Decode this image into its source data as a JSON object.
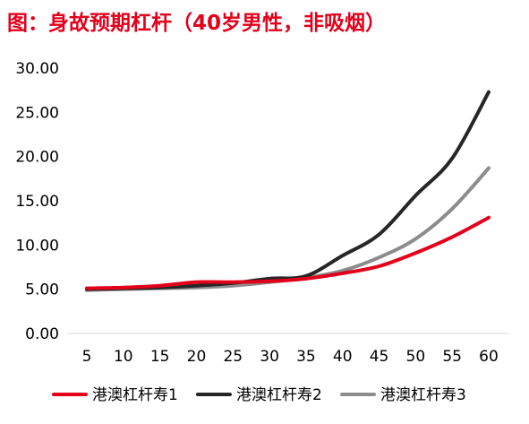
{
  "chart_data": {
    "type": "line",
    "title": "图：身故预期杠杆（40岁男性，非吸烟）",
    "xlabel": "",
    "ylabel": "",
    "x": [
      5,
      10,
      15,
      20,
      25,
      30,
      35,
      40,
      45,
      50,
      55,
      60
    ],
    "ylim": [
      0,
      30
    ],
    "y_ticks": [
      "0.00",
      "5.00",
      "10.00",
      "15.00",
      "20.00",
      "25.00",
      "30.00"
    ],
    "grid": false,
    "legend_position": "bottom",
    "series": [
      {
        "name": "港澳杠杆寿1",
        "color": "#e3001b",
        "values": [
          5.1,
          5.2,
          5.4,
          5.8,
          5.8,
          5.9,
          6.2,
          6.8,
          7.6,
          9.1,
          10.9,
          13.1
        ]
      },
      {
        "name": "港澳杠杆寿2",
        "color": "#262626",
        "values": [
          5.0,
          5.1,
          5.2,
          5.4,
          5.7,
          6.2,
          6.5,
          8.8,
          11.2,
          15.6,
          19.8,
          27.3
        ]
      },
      {
        "name": "港澳杠杆寿3",
        "color": "#8c8c8c",
        "values": [
          4.9,
          5.0,
          5.1,
          5.2,
          5.4,
          5.8,
          6.3,
          7.1,
          8.6,
          10.7,
          14.1,
          18.7
        ]
      }
    ]
  }
}
